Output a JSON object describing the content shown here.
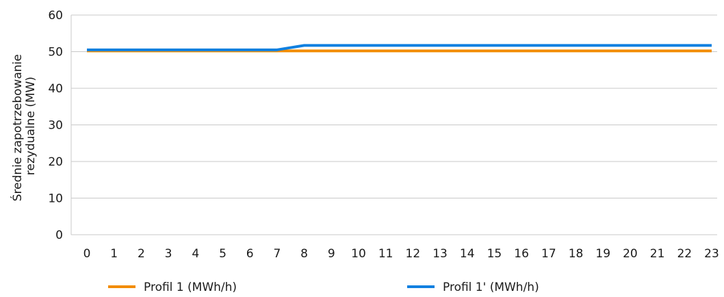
{
  "chart_data": {
    "type": "line",
    "title": "",
    "ylabel_lines": [
      "Średnie zapotrzebowanie",
      "rezydualne (MW)"
    ],
    "xlabel": "",
    "x": [
      0,
      1,
      2,
      3,
      4,
      5,
      6,
      7,
      8,
      9,
      10,
      11,
      12,
      13,
      14,
      15,
      16,
      17,
      18,
      19,
      20,
      21,
      22,
      23
    ],
    "ylim": [
      0,
      60
    ],
    "yticks": [
      0,
      10,
      20,
      30,
      40,
      50,
      60
    ],
    "grid": true,
    "legend_position": "bottom",
    "series": [
      {
        "name": "Profil 1 (MWh/h)",
        "color": "#F28C00",
        "values": [
          50.2,
          50.2,
          50.2,
          50.2,
          50.2,
          50.2,
          50.2,
          50.2,
          50.2,
          50.2,
          50.2,
          50.2,
          50.2,
          50.2,
          50.2,
          50.2,
          50.2,
          50.2,
          50.2,
          50.2,
          50.2,
          50.2,
          50.2,
          50.2
        ]
      },
      {
        "name": "Profil 1' (MWh/h)",
        "color": "#1080E0",
        "values": [
          50.5,
          50.5,
          50.5,
          50.5,
          50.5,
          50.5,
          50.5,
          50.5,
          51.7,
          51.7,
          51.7,
          51.7,
          51.7,
          51.7,
          51.7,
          51.7,
          51.7,
          51.7,
          51.7,
          51.7,
          51.7,
          51.7,
          51.7,
          51.7
        ]
      }
    ]
  }
}
